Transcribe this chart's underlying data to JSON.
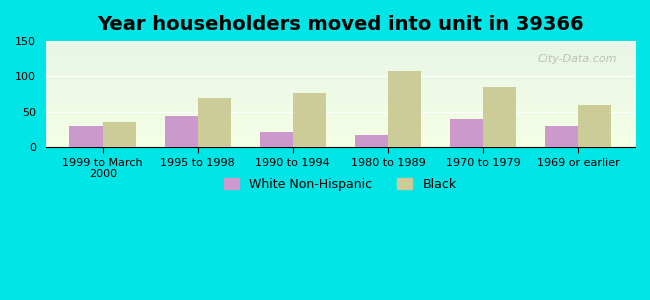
{
  "title": "Year householders moved into unit in 39366",
  "categories": [
    "1999 to March\n2000",
    "1995 to 1998",
    "1990 to 1994",
    "1980 to 1989",
    "1970 to 1979",
    "1969 or earlier"
  ],
  "white_values": [
    30,
    44,
    22,
    17,
    40,
    30
  ],
  "black_values": [
    35,
    70,
    77,
    108,
    85,
    60
  ],
  "white_color": "#cc99cc",
  "black_color": "#cccc99",
  "bg_outer": "#00e5e5",
  "bg_plot_top": "#e8f5e8",
  "bg_plot_bottom": "#f5ffe5",
  "ylim": [
    0,
    150
  ],
  "yticks": [
    0,
    50,
    100,
    150
  ],
  "bar_width": 0.35,
  "title_fontsize": 14,
  "legend_fontsize": 9,
  "tick_fontsize": 8,
  "watermark": "City-Data.com"
}
